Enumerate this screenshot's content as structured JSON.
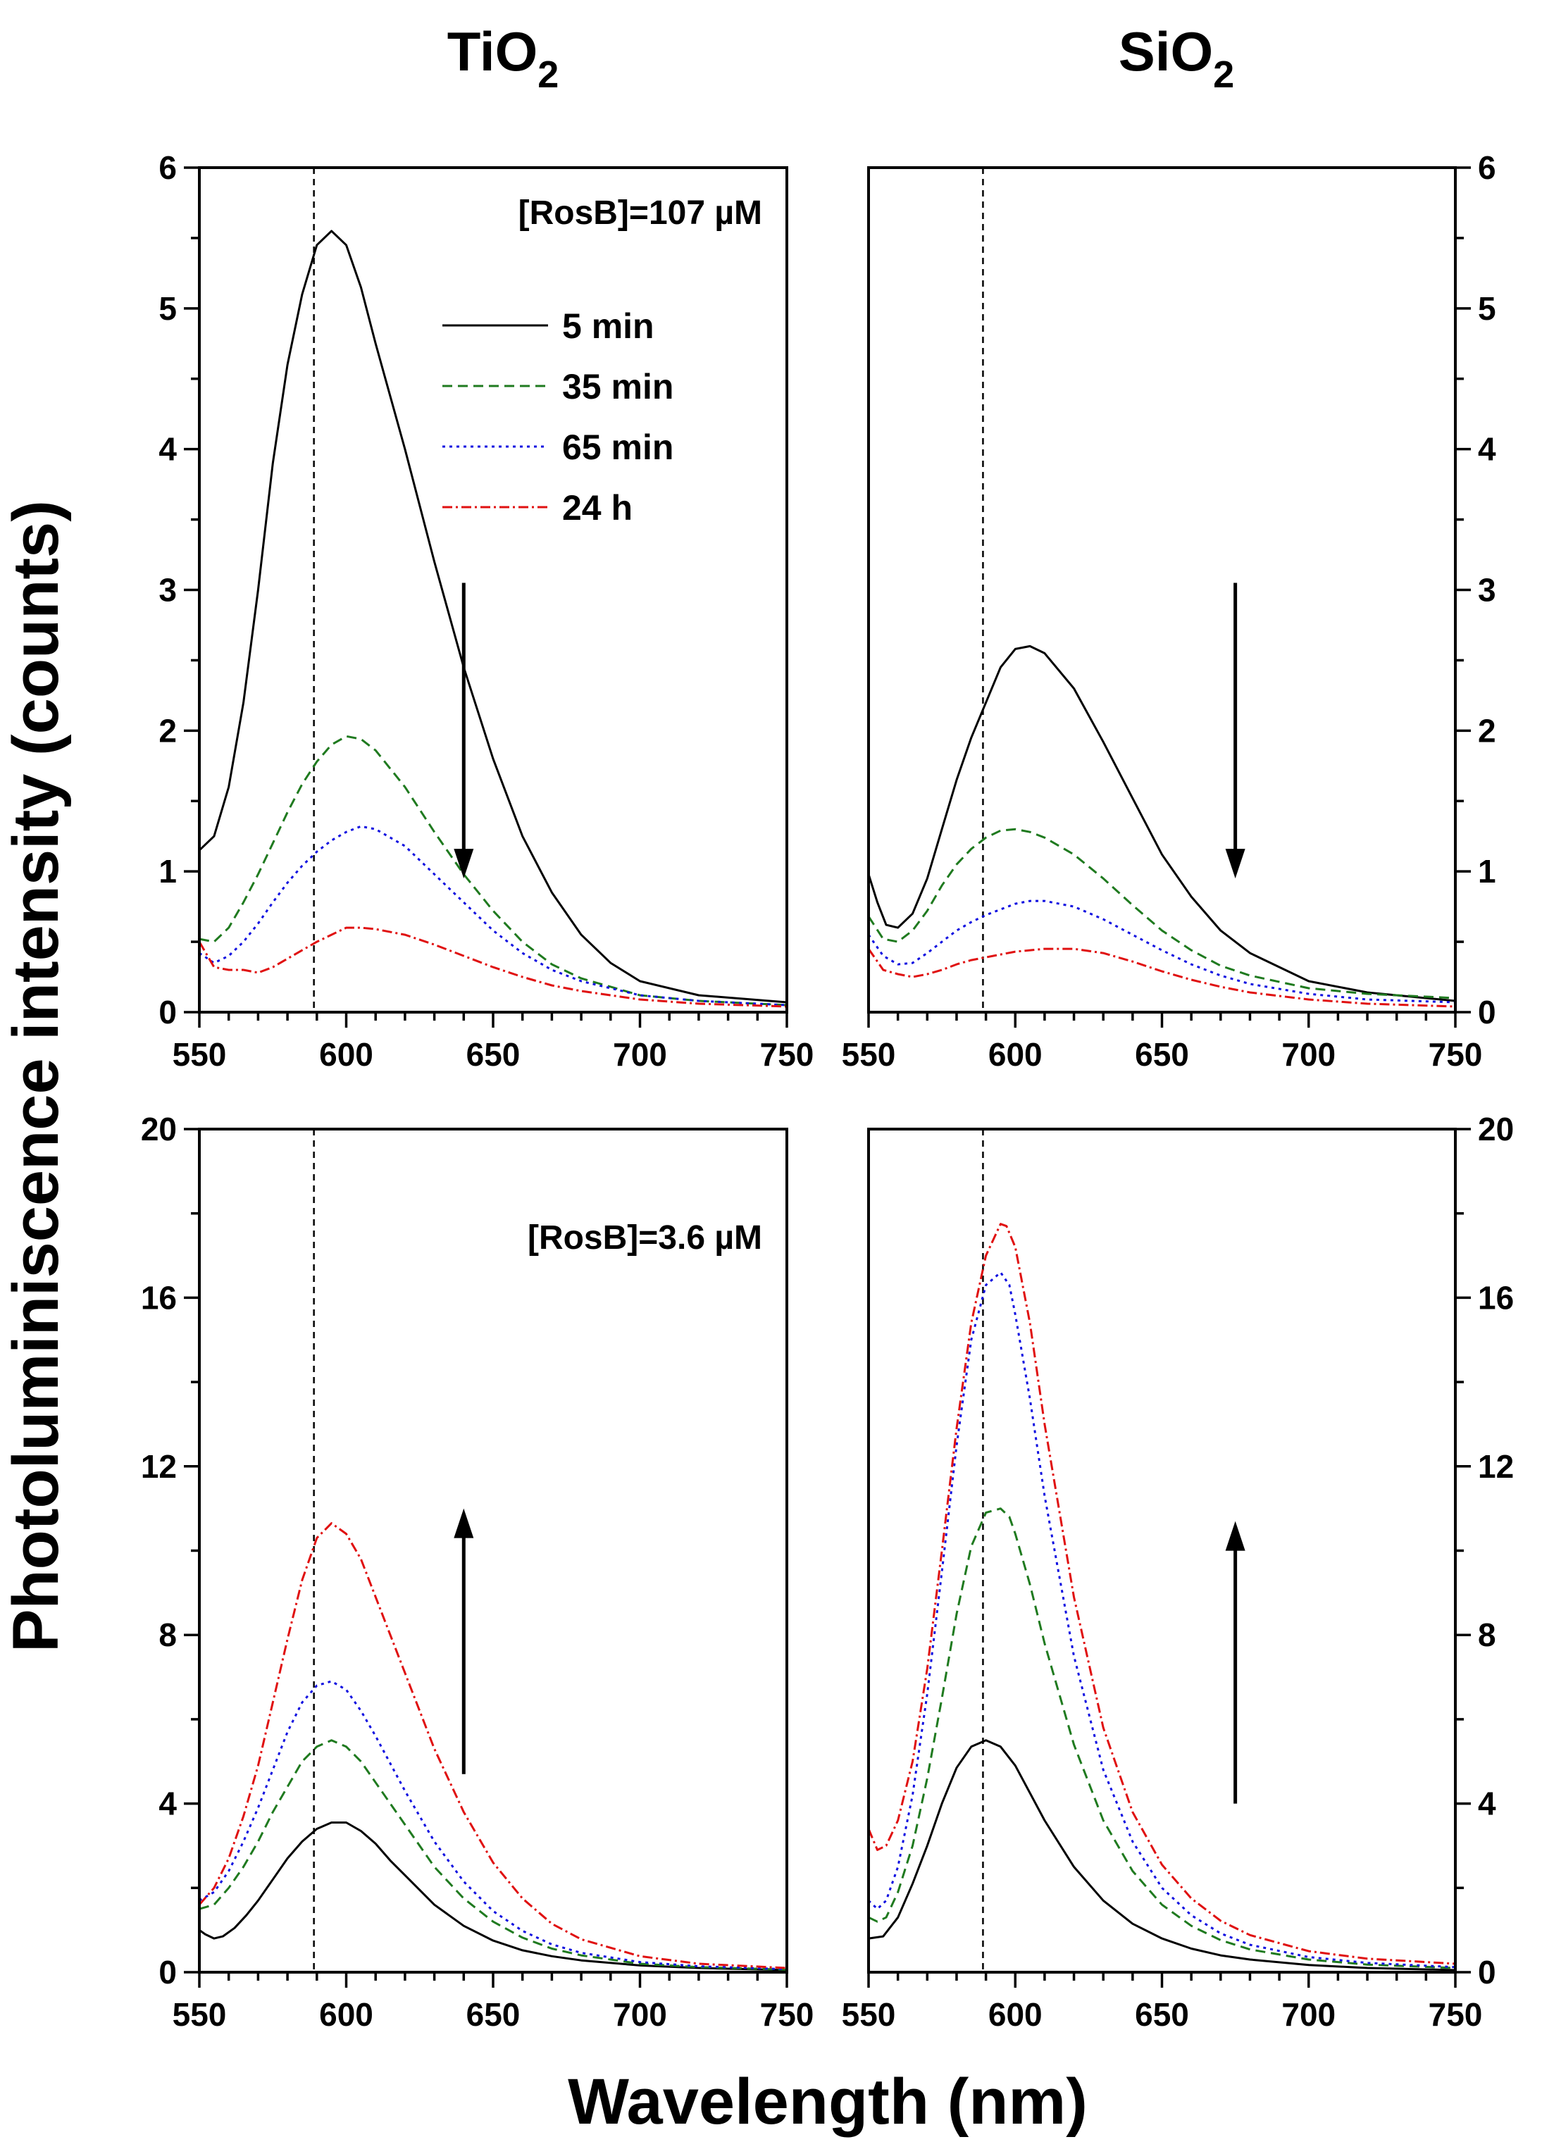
{
  "figure": {
    "ylabel": "Photoluminiscence intensity (counts)",
    "xlabel": "Wavelength (nm)",
    "columns": [
      {
        "base": "TiO",
        "sub": "2"
      },
      {
        "base": "SiO",
        "sub": "2"
      }
    ],
    "annotations": {
      "top": "[RosB]=107 µM",
      "bottom": "[RosB]=3.6 µM"
    },
    "legend": [
      "5 min",
      "35 min",
      "65 min",
      "24 h"
    ],
    "colors": {
      "5 min": "#000000",
      "35 min": "#1f7a1f",
      "65 min": "#1010e0",
      "24 h": "#e01010"
    },
    "dashed_reference_nm": 589
  },
  "chart_data": [
    {
      "type": "line",
      "panel": "top-left",
      "title": "TiO2",
      "annotation": "[RosB]=107 µM",
      "xlabel": "Wavelength (nm)",
      "ylabel": "Photoluminiscence intensity (counts)",
      "xlim": [
        550,
        750
      ],
      "ylim": [
        0,
        6
      ],
      "xticks": [
        550,
        600,
        650,
        700,
        750
      ],
      "yticks": [
        0,
        1,
        2,
        3,
        4,
        5,
        6
      ],
      "arrow": "down",
      "series": [
        {
          "name": "5 min",
          "x": [
            550,
            555,
            560,
            565,
            570,
            575,
            580,
            585,
            590,
            595,
            600,
            605,
            610,
            620,
            630,
            640,
            650,
            660,
            670,
            680,
            690,
            700,
            720,
            750
          ],
          "values": [
            1.15,
            1.25,
            1.6,
            2.2,
            3.0,
            3.9,
            4.6,
            5.1,
            5.45,
            5.55,
            5.45,
            5.15,
            4.75,
            4.0,
            3.2,
            2.45,
            1.8,
            1.25,
            0.85,
            0.55,
            0.35,
            0.22,
            0.12,
            0.07
          ]
        },
        {
          "name": "35 min",
          "x": [
            550,
            555,
            560,
            565,
            570,
            575,
            580,
            585,
            590,
            595,
            600,
            605,
            610,
            620,
            630,
            640,
            650,
            660,
            670,
            680,
            700,
            720,
            750
          ],
          "values": [
            0.52,
            0.5,
            0.6,
            0.78,
            0.98,
            1.2,
            1.42,
            1.62,
            1.78,
            1.9,
            1.96,
            1.94,
            1.86,
            1.6,
            1.28,
            0.98,
            0.72,
            0.5,
            0.34,
            0.24,
            0.12,
            0.08,
            0.05
          ]
        },
        {
          "name": "65 min",
          "x": [
            550,
            555,
            560,
            565,
            570,
            575,
            580,
            585,
            590,
            595,
            600,
            605,
            610,
            620,
            630,
            640,
            650,
            660,
            670,
            680,
            700,
            720,
            750
          ],
          "values": [
            0.42,
            0.35,
            0.4,
            0.5,
            0.63,
            0.78,
            0.92,
            1.04,
            1.14,
            1.22,
            1.28,
            1.32,
            1.3,
            1.18,
            0.98,
            0.78,
            0.58,
            0.42,
            0.3,
            0.22,
            0.12,
            0.08,
            0.05
          ]
        },
        {
          "name": "24 h",
          "x": [
            550,
            555,
            560,
            565,
            570,
            575,
            580,
            585,
            590,
            595,
            600,
            605,
            610,
            620,
            630,
            640,
            650,
            660,
            670,
            680,
            700,
            720,
            750
          ],
          "values": [
            0.5,
            0.32,
            0.3,
            0.3,
            0.28,
            0.32,
            0.38,
            0.44,
            0.5,
            0.55,
            0.6,
            0.6,
            0.59,
            0.55,
            0.48,
            0.4,
            0.32,
            0.25,
            0.19,
            0.15,
            0.09,
            0.06,
            0.04
          ]
        }
      ]
    },
    {
      "type": "line",
      "panel": "top-right",
      "title": "SiO2",
      "xlabel": "Wavelength (nm)",
      "ylabel": "Photoluminiscence intensity (counts)",
      "xlim": [
        550,
        750
      ],
      "ylim": [
        0,
        6
      ],
      "xticks": [
        550,
        600,
        650,
        700,
        750
      ],
      "yticks": [
        0,
        1,
        2,
        3,
        4,
        5,
        6
      ],
      "arrow": "down",
      "series": [
        {
          "name": "5 min",
          "x": [
            550,
            553,
            556,
            560,
            565,
            570,
            575,
            580,
            585,
            590,
            595,
            600,
            605,
            610,
            620,
            630,
            640,
            650,
            660,
            670,
            680,
            700,
            720,
            750
          ],
          "values": [
            0.98,
            0.78,
            0.62,
            0.6,
            0.7,
            0.95,
            1.3,
            1.65,
            1.95,
            2.2,
            2.45,
            2.58,
            2.6,
            2.55,
            2.3,
            1.92,
            1.52,
            1.12,
            0.82,
            0.58,
            0.42,
            0.22,
            0.14,
            0.08
          ]
        },
        {
          "name": "35 min",
          "x": [
            550,
            555,
            560,
            565,
            570,
            575,
            580,
            585,
            590,
            595,
            600,
            605,
            610,
            620,
            630,
            640,
            650,
            660,
            670,
            680,
            700,
            720,
            750
          ],
          "values": [
            0.68,
            0.52,
            0.5,
            0.58,
            0.72,
            0.9,
            1.05,
            1.16,
            1.24,
            1.29,
            1.3,
            1.28,
            1.24,
            1.12,
            0.95,
            0.76,
            0.58,
            0.44,
            0.33,
            0.26,
            0.17,
            0.13,
            0.1
          ]
        },
        {
          "name": "65 min",
          "x": [
            550,
            555,
            560,
            565,
            570,
            575,
            580,
            585,
            590,
            595,
            600,
            605,
            610,
            620,
            630,
            640,
            650,
            660,
            670,
            680,
            700,
            720,
            750
          ],
          "values": [
            0.55,
            0.4,
            0.34,
            0.35,
            0.42,
            0.5,
            0.58,
            0.64,
            0.69,
            0.73,
            0.77,
            0.79,
            0.79,
            0.75,
            0.66,
            0.55,
            0.44,
            0.34,
            0.26,
            0.2,
            0.13,
            0.09,
            0.07
          ]
        },
        {
          "name": "24 h",
          "x": [
            550,
            555,
            560,
            565,
            570,
            575,
            580,
            585,
            590,
            595,
            600,
            605,
            610,
            620,
            630,
            640,
            650,
            660,
            670,
            680,
            700,
            720,
            750
          ],
          "values": [
            0.45,
            0.3,
            0.27,
            0.25,
            0.27,
            0.3,
            0.34,
            0.37,
            0.39,
            0.41,
            0.43,
            0.44,
            0.45,
            0.45,
            0.42,
            0.36,
            0.29,
            0.23,
            0.18,
            0.14,
            0.09,
            0.06,
            0.04
          ]
        }
      ]
    },
    {
      "type": "line",
      "panel": "bottom-left",
      "title": "TiO2",
      "annotation": "[RosB]=3.6 µM",
      "xlabel": "Wavelength (nm)",
      "ylabel": "Photoluminiscence intensity (counts)",
      "xlim": [
        550,
        750
      ],
      "ylim": [
        0,
        20
      ],
      "xticks": [
        550,
        600,
        650,
        700,
        750
      ],
      "yticks": [
        0,
        4,
        8,
        12,
        16,
        20
      ],
      "arrow": "up",
      "series": [
        {
          "name": "5 min",
          "x": [
            550,
            552,
            555,
            558,
            562,
            566,
            570,
            575,
            580,
            585,
            590,
            595,
            600,
            605,
            610,
            615,
            620,
            630,
            640,
            650,
            660,
            670,
            680,
            700,
            720,
            750
          ],
          "values": [
            1.0,
            0.9,
            0.8,
            0.85,
            1.05,
            1.35,
            1.7,
            2.2,
            2.7,
            3.1,
            3.4,
            3.55,
            3.55,
            3.35,
            3.05,
            2.65,
            2.3,
            1.6,
            1.1,
            0.75,
            0.52,
            0.38,
            0.28,
            0.16,
            0.1,
            0.05
          ]
        },
        {
          "name": "35 min",
          "x": [
            550,
            555,
            560,
            565,
            570,
            575,
            580,
            585,
            590,
            595,
            600,
            605,
            610,
            620,
            630,
            640,
            650,
            660,
            670,
            680,
            700,
            720,
            750
          ],
          "values": [
            1.5,
            1.6,
            2.0,
            2.5,
            3.1,
            3.8,
            4.4,
            5.0,
            5.35,
            5.5,
            5.35,
            5.0,
            4.5,
            3.5,
            2.5,
            1.75,
            1.2,
            0.82,
            0.56,
            0.4,
            0.2,
            0.12,
            0.06
          ]
        },
        {
          "name": "65 min",
          "x": [
            550,
            555,
            560,
            565,
            570,
            575,
            580,
            585,
            590,
            595,
            600,
            605,
            610,
            620,
            630,
            640,
            650,
            660,
            670,
            680,
            700,
            720,
            750
          ],
          "values": [
            1.7,
            1.9,
            2.4,
            3.1,
            3.9,
            4.8,
            5.7,
            6.4,
            6.8,
            6.9,
            6.7,
            6.2,
            5.6,
            4.3,
            3.1,
            2.15,
            1.45,
            0.98,
            0.66,
            0.46,
            0.24,
            0.14,
            0.07
          ]
        },
        {
          "name": "24 h",
          "x": [
            550,
            555,
            560,
            565,
            570,
            575,
            580,
            585,
            590,
            595,
            600,
            605,
            610,
            620,
            630,
            640,
            650,
            660,
            670,
            680,
            700,
            720,
            750
          ],
          "values": [
            1.6,
            2.0,
            2.7,
            3.7,
            4.9,
            6.4,
            7.9,
            9.3,
            10.3,
            10.65,
            10.4,
            9.8,
            8.9,
            7.1,
            5.3,
            3.8,
            2.6,
            1.75,
            1.15,
            0.78,
            0.38,
            0.2,
            0.1
          ]
        }
      ]
    },
    {
      "type": "line",
      "panel": "bottom-right",
      "title": "SiO2",
      "xlabel": "Wavelength (nm)",
      "ylabel": "Photoluminiscence intensity (counts)",
      "xlim": [
        550,
        750
      ],
      "ylim": [
        0,
        20
      ],
      "xticks": [
        550,
        600,
        650,
        700,
        750
      ],
      "yticks": [
        0,
        4,
        8,
        12,
        16,
        20
      ],
      "arrow": "up",
      "series": [
        {
          "name": "5 min",
          "x": [
            550,
            555,
            560,
            565,
            570,
            575,
            580,
            585,
            590,
            595,
            600,
            605,
            610,
            620,
            630,
            640,
            650,
            660,
            670,
            680,
            700,
            720,
            750
          ],
          "values": [
            0.8,
            0.85,
            1.3,
            2.1,
            3.0,
            4.0,
            4.85,
            5.35,
            5.5,
            5.35,
            4.9,
            4.25,
            3.6,
            2.5,
            1.7,
            1.15,
            0.8,
            0.56,
            0.4,
            0.3,
            0.17,
            0.1,
            0.05
          ]
        },
        {
          "name": "35 min",
          "x": [
            550,
            553,
            556,
            560,
            565,
            570,
            575,
            580,
            585,
            590,
            595,
            598,
            600,
            605,
            610,
            620,
            630,
            640,
            650,
            660,
            670,
            680,
            700,
            720,
            750
          ],
          "values": [
            1.3,
            1.2,
            1.3,
            1.9,
            3.0,
            4.6,
            6.5,
            8.5,
            10.1,
            10.9,
            11.0,
            10.8,
            10.4,
            9.2,
            7.8,
            5.4,
            3.6,
            2.4,
            1.6,
            1.1,
            0.76,
            0.54,
            0.3,
            0.18,
            0.1
          ]
        },
        {
          "name": "65 min",
          "x": [
            550,
            553,
            556,
            560,
            565,
            570,
            575,
            580,
            585,
            590,
            595,
            598,
            600,
            605,
            610,
            620,
            630,
            640,
            650,
            660,
            670,
            680,
            700,
            720,
            750
          ],
          "values": [
            1.7,
            1.5,
            1.7,
            2.5,
            4.2,
            6.6,
            9.5,
            12.5,
            15.0,
            16.3,
            16.6,
            16.3,
            15.6,
            13.6,
            11.3,
            7.5,
            4.8,
            3.1,
            2.0,
            1.35,
            0.92,
            0.65,
            0.36,
            0.22,
            0.12
          ]
        },
        {
          "name": "24 h",
          "x": [
            550,
            553,
            556,
            560,
            565,
            570,
            575,
            580,
            585,
            590,
            595,
            597,
            600,
            605,
            610,
            620,
            630,
            640,
            650,
            660,
            670,
            680,
            700,
            720,
            750
          ],
          "values": [
            3.4,
            2.9,
            3.0,
            3.6,
            5.0,
            7.2,
            10.0,
            12.9,
            15.4,
            17.0,
            17.75,
            17.7,
            17.2,
            15.4,
            13.0,
            8.9,
            5.8,
            3.8,
            2.55,
            1.75,
            1.22,
            0.88,
            0.5,
            0.32,
            0.2
          ]
        }
      ]
    }
  ]
}
